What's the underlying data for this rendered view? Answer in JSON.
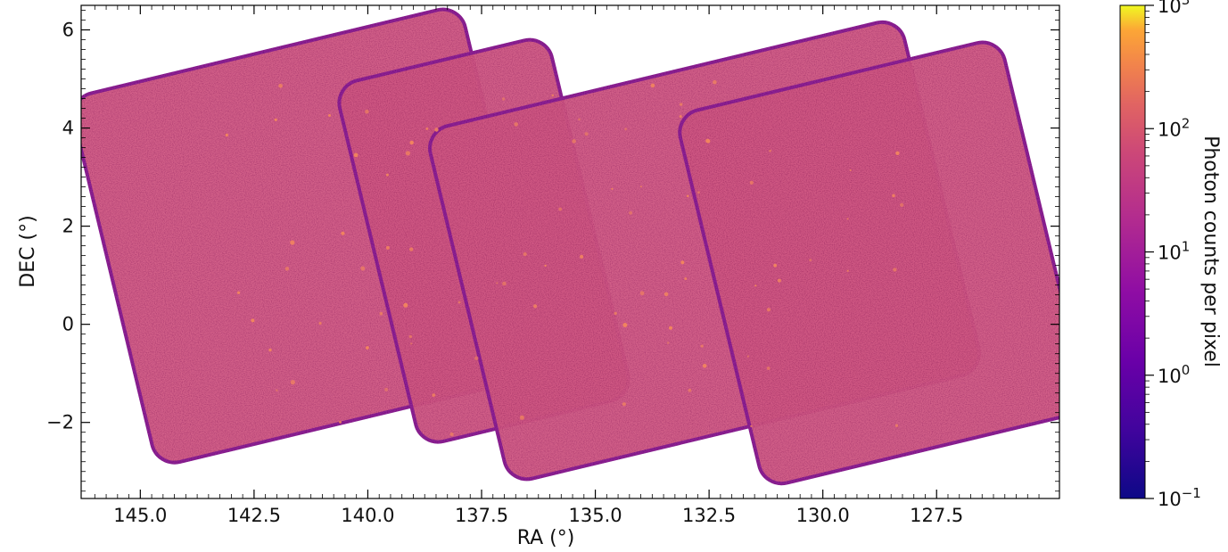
{
  "chart_data": {
    "type": "heatmap",
    "title": "",
    "xlabel": "RA (°)",
    "ylabel": "DEC (°)",
    "x_axis_reversed": true,
    "xlim": [
      146.3,
      124.8
    ],
    "ylim": [
      -3.55,
      6.5
    ],
    "x_ticks": [
      145.0,
      142.5,
      140.0,
      137.5,
      135.0,
      132.5,
      130.0,
      127.5
    ],
    "x_tick_labels": [
      "145.0",
      "142.5",
      "140.0",
      "137.5",
      "135.0",
      "132.5",
      "130.0",
      "127.5"
    ],
    "y_ticks": [
      6,
      4,
      2,
      0,
      -2
    ],
    "y_tick_labels": [
      "6",
      "4",
      "2",
      "0",
      "−2"
    ],
    "grid": false,
    "colormap": "plasma",
    "colorbar": {
      "label": "Photon counts per pixel",
      "scale": "log",
      "range": [
        0.1,
        1000
      ],
      "tick_exponents": [
        -1,
        0,
        1,
        2,
        3
      ]
    },
    "typical_counts_per_pixel": 10,
    "tiles": [
      {
        "ra_range": [
          146.0,
          136.6
        ],
        "dec_range": [
          -2.8,
          6.4
        ]
      },
      {
        "ra_range": [
          140.0,
          134.9
        ],
        "dec_range": [
          -2.8,
          6.2
        ]
      },
      {
        "ra_range": [
          138.3,
          126.9
        ],
        "dec_range": [
          -2.9,
          5.9
        ]
      },
      {
        "ra_range": [
          132.6,
          124.8
        ],
        "dec_range": [
          -3.4,
          5.9
        ]
      }
    ],
    "colors": {
      "tile_fill": "#d15a84",
      "tile_edge": "#8f2296",
      "bright_source": "#f2855e"
    }
  }
}
